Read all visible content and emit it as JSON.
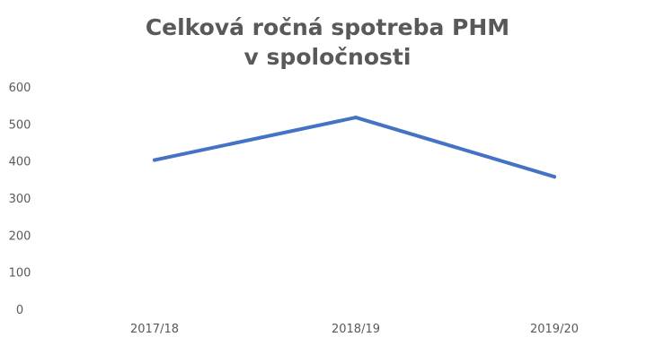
{
  "chart_data": {
    "type": "line",
    "title": [
      "Celková ročná spotreba PHM",
      "v spoločnosti"
    ],
    "xlabel": "",
    "ylabel": "",
    "categories": [
      "2017/18",
      "2018/19",
      "2019/20"
    ],
    "series": [
      {
        "values": [
          405,
          520,
          360
        ],
        "color": "#4472c4"
      }
    ],
    "ylim": [
      0,
      600
    ],
    "yticks": [
      0,
      100,
      200,
      300,
      400,
      500,
      600
    ],
    "grid": false,
    "legend": "none"
  }
}
